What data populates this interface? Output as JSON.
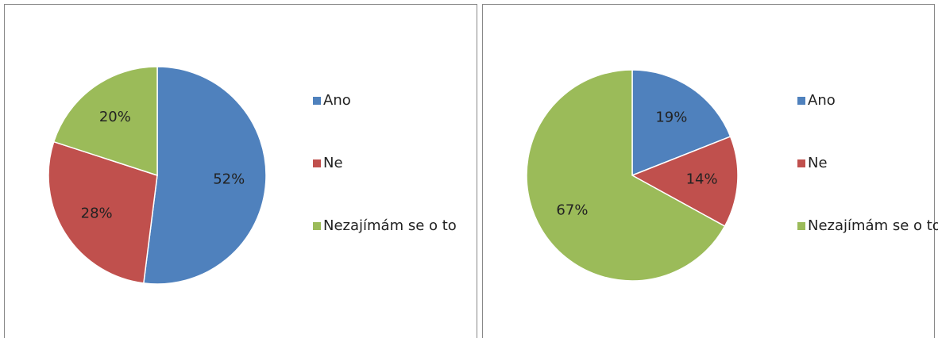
{
  "chart_data": [
    {
      "type": "pie",
      "categories": [
        "Ano",
        "Ne",
        "Nezajímám se o to"
      ],
      "values": [
        52,
        28,
        20
      ],
      "value_labels": [
        "52%",
        "28%",
        "20%"
      ],
      "colors": [
        "#4f81bd",
        "#c0504d",
        "#9bbb59"
      ],
      "legend": "right"
    },
    {
      "type": "pie",
      "categories": [
        "Ano",
        "Ne",
        "Nezajímám se o to"
      ],
      "values": [
        19,
        14,
        67
      ],
      "value_labels": [
        "19%",
        "14%",
        "67%"
      ],
      "colors": [
        "#4f81bd",
        "#c0504d",
        "#9bbb59"
      ],
      "legend": "right"
    }
  ]
}
